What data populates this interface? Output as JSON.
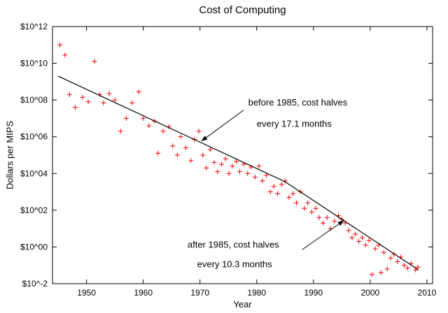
{
  "chart_data": {
    "type": "scatter",
    "title": "Cost of Computing",
    "xlabel": "Year",
    "ylabel": "Dollars per MIPS",
    "y_scale": "log10",
    "xlim": [
      1944,
      2011
    ],
    "ylim_log10": [
      -2,
      12
    ],
    "grid": false,
    "x_ticks": [
      1950,
      1960,
      1970,
      1980,
      1990,
      2000,
      2010
    ],
    "y_ticks": [
      {
        "log10": 12,
        "label": "$10^12"
      },
      {
        "log10": 10,
        "label": "$10^10"
      },
      {
        "log10": 8,
        "label": "$10^08"
      },
      {
        "log10": 6,
        "label": "$10^06"
      },
      {
        "log10": 4,
        "label": "$10^04"
      },
      {
        "log10": 2,
        "label": "$10^02"
      },
      {
        "log10": 0,
        "label": "$10^00"
      },
      {
        "log10": -2,
        "label": "$10^-2"
      }
    ],
    "marker": {
      "shape": "plus",
      "color": "#ff0000",
      "size": 7
    },
    "points": [
      [
        1945.3,
        11.0
      ],
      [
        1946.2,
        10.45
      ],
      [
        1947.0,
        8.3
      ],
      [
        1948.0,
        7.6
      ],
      [
        1949.3,
        8.15
      ],
      [
        1950.3,
        7.9
      ],
      [
        1951.4,
        10.1
      ],
      [
        1952.3,
        8.3
      ],
      [
        1953.0,
        7.85
      ],
      [
        1954.0,
        8.35
      ],
      [
        1955.0,
        8.0
      ],
      [
        1956.0,
        6.3
      ],
      [
        1957.0,
        7.0
      ],
      [
        1958.0,
        7.85
      ],
      [
        1959.2,
        8.45
      ],
      [
        1960.0,
        7.0
      ],
      [
        1961.0,
        6.6
      ],
      [
        1962.0,
        6.85
      ],
      [
        1962.6,
        5.1
      ],
      [
        1963.5,
        6.3
      ],
      [
        1964.5,
        6.55
      ],
      [
        1965.2,
        5.5
      ],
      [
        1966.0,
        5.0
      ],
      [
        1966.6,
        6.0
      ],
      [
        1967.5,
        5.4
      ],
      [
        1968.4,
        4.7
      ],
      [
        1969.0,
        5.85
      ],
      [
        1969.8,
        6.3
      ],
      [
        1970.5,
        5.0
      ],
      [
        1971.1,
        4.3
      ],
      [
        1971.8,
        5.3
      ],
      [
        1972.5,
        4.6
      ],
      [
        1973.1,
        4.1
      ],
      [
        1973.8,
        4.5
      ],
      [
        1974.5,
        4.8
      ],
      [
        1975.1,
        4.0
      ],
      [
        1975.7,
        4.4
      ],
      [
        1976.4,
        4.65
      ],
      [
        1977.0,
        4.1
      ],
      [
        1977.7,
        4.5
      ],
      [
        1978.4,
        4.0
      ],
      [
        1979.0,
        4.35
      ],
      [
        1979.7,
        3.8
      ],
      [
        1980.4,
        4.4
      ],
      [
        1981.0,
        3.6
      ],
      [
        1981.7,
        3.9
      ],
      [
        1982.4,
        3.0
      ],
      [
        1983.0,
        3.3
      ],
      [
        1983.7,
        2.9
      ],
      [
        1984.4,
        3.4
      ],
      [
        1985.0,
        3.6
      ],
      [
        1985.7,
        2.7
      ],
      [
        1986.4,
        2.9
      ],
      [
        1987.0,
        2.4
      ],
      [
        1987.7,
        3.0
      ],
      [
        1988.4,
        2.1
      ],
      [
        1989.0,
        2.4
      ],
      [
        1989.7,
        1.9
      ],
      [
        1990.4,
        2.1
      ],
      [
        1991.0,
        1.6
      ],
      [
        1991.7,
        1.3
      ],
      [
        1992.4,
        1.6
      ],
      [
        1993.0,
        1.0
      ],
      [
        1993.7,
        1.4
      ],
      [
        1994.4,
        1.7
      ],
      [
        1995.0,
        1.5
      ],
      [
        1995.6,
        1.3
      ],
      [
        1996.2,
        0.9
      ],
      [
        1996.8,
        0.5
      ],
      [
        1997.4,
        0.7
      ],
      [
        1998.0,
        0.3
      ],
      [
        1998.6,
        0.5
      ],
      [
        1999.2,
        0.1
      ],
      [
        1999.8,
        0.35
      ],
      [
        2000.3,
        -1.5
      ],
      [
        2000.9,
        -0.1
      ],
      [
        2001.5,
        0.1
      ],
      [
        2001.9,
        -1.4
      ],
      [
        2002.4,
        -0.3
      ],
      [
        2003.0,
        -1.2
      ],
      [
        2003.6,
        -0.6
      ],
      [
        2004.2,
        -0.4
      ],
      [
        2004.8,
        -0.8
      ],
      [
        2005.4,
        -0.55
      ],
      [
        2006.0,
        -1.0
      ],
      [
        2006.6,
        -1.15
      ],
      [
        2007.2,
        -0.9
      ],
      [
        2008.0,
        -1.25
      ],
      [
        2008.4,
        -1.1
      ]
    ],
    "trend_line": {
      "color": "#000000",
      "points": [
        [
          1945,
          9.3
        ],
        [
          1985,
          3.55
        ],
        [
          2008.5,
          -1.25
        ]
      ]
    },
    "annotations": [
      {
        "name": "before-1985",
        "lines": [
          {
            "text": "before 1985, cost halves",
            "x": 1978.5,
            "y": 7.7
          },
          {
            "text": "every 17.1 months",
            "x": 1980.0,
            "y": 6.55
          }
        ],
        "arrow": {
          "from": [
            1977.7,
            7.45
          ],
          "to": [
            1970.2,
            5.75
          ]
        }
      },
      {
        "name": "after-1985",
        "lines": [
          {
            "text": "after 1985, cost halves",
            "x": 1967.8,
            "y": -0.05
          },
          {
            "text": "every 10.3 months",
            "x": 1969.5,
            "y": -1.1
          }
        ],
        "arrow": {
          "from": [
            1988.0,
            -0.15
          ],
          "to": [
            1995.4,
            1.45
          ]
        }
      }
    ]
  }
}
